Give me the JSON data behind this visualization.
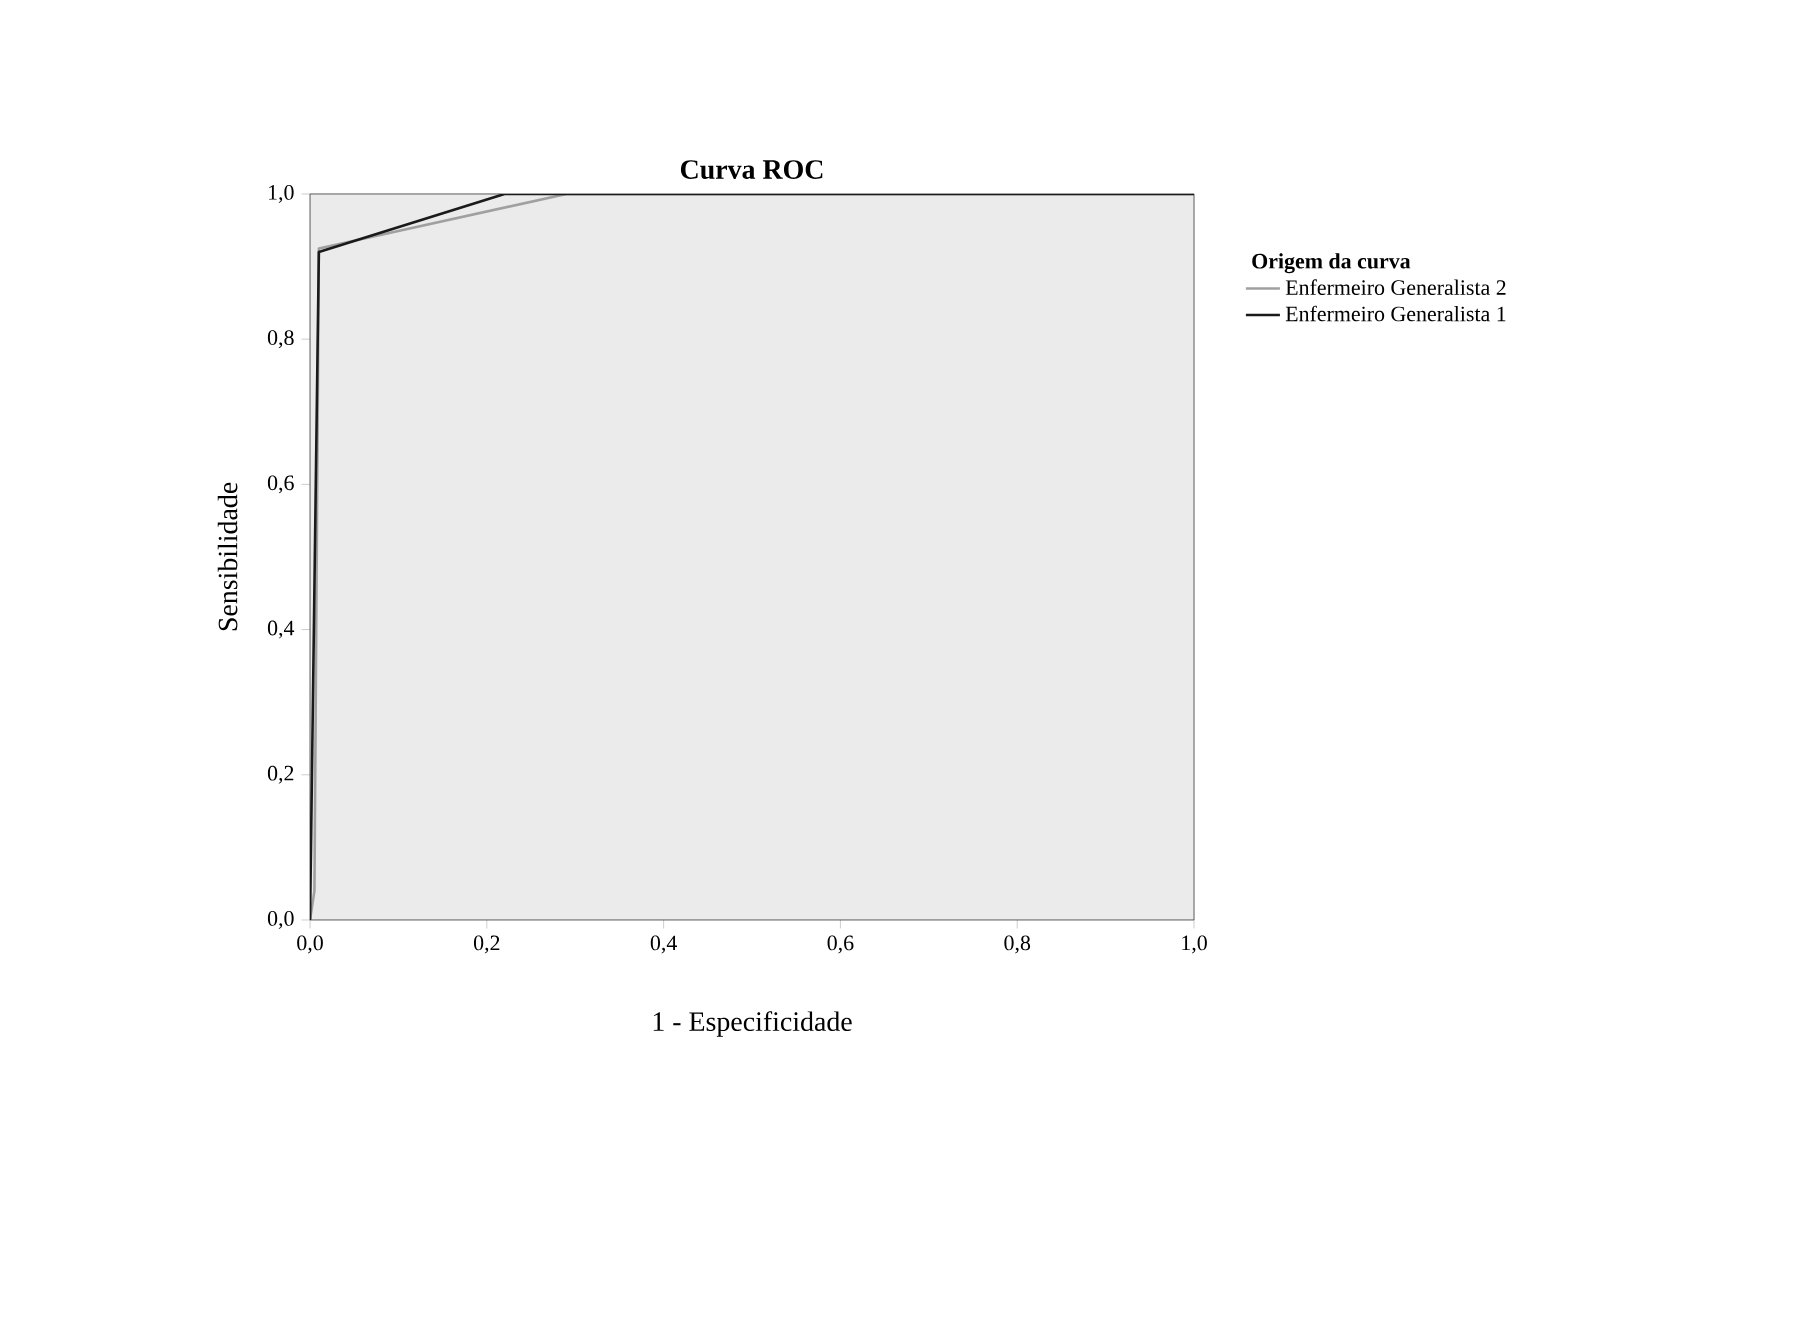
{
  "chart_data": {
    "type": "line",
    "title": "Curva ROC",
    "xlabel": "1 - Especificidade",
    "ylabel": "Sensibilidade",
    "legend_title": "Origem da curva",
    "series": [
      {
        "name": "Enfermeiro Generalista 2",
        "color": "#a0a0a0",
        "x": [
          0,
          0.005,
          0.01,
          0.29,
          1
        ],
        "values": [
          0,
          0.04,
          0.925,
          1,
          1
        ]
      },
      {
        "name": "Enfermeiro Generalista 1",
        "color": "#1a1a1a",
        "x": [
          0,
          0.01,
          0.22,
          1
        ],
        "values": [
          0,
          0.92,
          1,
          1
        ]
      }
    ],
    "xlim": [
      0,
      1
    ],
    "ylim": [
      0,
      1
    ],
    "xticks": [
      {
        "value": 0,
        "label": "0,0"
      },
      {
        "value": 0.2,
        "label": "0,2"
      },
      {
        "value": 0.4,
        "label": "0,4"
      },
      {
        "value": 0.6,
        "label": "0,6"
      },
      {
        "value": 0.8,
        "label": "0,8"
      },
      {
        "value": 1,
        "label": "1,0"
      }
    ],
    "yticks": [
      {
        "value": 0,
        "label": "0,0"
      },
      {
        "value": 0.2,
        "label": "0,2"
      },
      {
        "value": 0.4,
        "label": "0,4"
      },
      {
        "value": 0.6,
        "label": "0,6"
      },
      {
        "value": 0.8,
        "label": "0,8"
      },
      {
        "value": 1,
        "label": "1,0"
      }
    ],
    "grid": false,
    "legend": "right",
    "marker": "none",
    "line_style": "solid"
  }
}
